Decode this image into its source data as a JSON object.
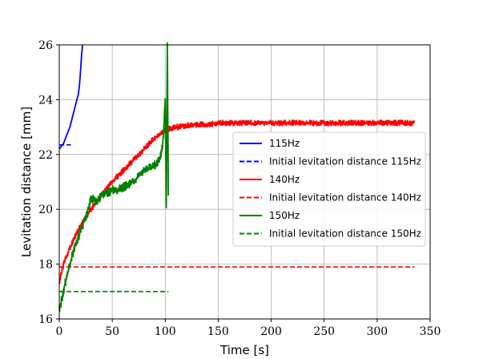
{
  "chart_data": {
    "type": "line",
    "xlabel": "Time [s]",
    "ylabel": "Levitation distance [mm]",
    "xlim": [
      0,
      350
    ],
    "ylim": [
      16,
      26
    ],
    "xticks": [
      0,
      50,
      100,
      150,
      200,
      250,
      300,
      350
    ],
    "yticks": [
      16,
      18,
      20,
      22,
      24,
      26
    ],
    "grid": true,
    "legend_position": "center-right",
    "series": [
      {
        "name": "115Hz",
        "style": "solid",
        "color": "#0000ff",
        "x": [
          0,
          2,
          4,
          6,
          8,
          10,
          12,
          14,
          16,
          18,
          19,
          20,
          21,
          22
        ],
        "y": [
          22.2,
          22.3,
          22.4,
          22.6,
          22.8,
          23.0,
          23.3,
          23.6,
          23.9,
          24.2,
          24.5,
          25.0,
          25.6,
          26.0
        ]
      },
      {
        "name": "Initial levitation distance 115Hz",
        "style": "dashed",
        "color": "#0000ff",
        "x": [
          0,
          11
        ],
        "y": [
          22.35,
          22.35
        ]
      },
      {
        "name": "140Hz",
        "style": "solid",
        "color": "#ff0000",
        "noise": 0.12,
        "x": [
          0,
          2,
          5,
          10,
          15,
          20,
          30,
          40,
          50,
          60,
          70,
          80,
          90,
          100,
          110,
          120,
          130,
          140,
          150,
          200,
          250,
          300,
          335
        ],
        "y": [
          17.3,
          17.7,
          18.1,
          18.6,
          19.0,
          19.4,
          20.0,
          20.5,
          21.0,
          21.4,
          21.8,
          22.2,
          22.6,
          22.9,
          23.0,
          23.05,
          23.1,
          23.1,
          23.15,
          23.15,
          23.15,
          23.15,
          23.15
        ]
      },
      {
        "name": "Initial levitation distance 140Hz",
        "style": "dashed",
        "color": "#ff0000",
        "x": [
          0,
          335
        ],
        "y": [
          17.9,
          17.9
        ]
      },
      {
        "name": "150Hz",
        "style": "solid",
        "color": "#008000",
        "noise": 0.18,
        "x": [
          0,
          5,
          10,
          15,
          20,
          25,
          30,
          35,
          40,
          45,
          50,
          55,
          60,
          65,
          70,
          75,
          80,
          85,
          90,
          95,
          98,
          100,
          101,
          102,
          103
        ],
        "y": [
          16.3,
          17.2,
          18.0,
          18.7,
          19.2,
          19.7,
          20.4,
          20.3,
          20.5,
          20.6,
          20.7,
          20.7,
          20.8,
          20.9,
          21.0,
          21.2,
          21.4,
          21.5,
          21.6,
          21.8,
          22.5,
          24.0,
          20.0,
          26.0,
          20.5
        ]
      },
      {
        "name": "Initial levitation distance 150Hz",
        "style": "dashed",
        "color": "#008000",
        "x": [
          0,
          103
        ],
        "y": [
          17.0,
          17.0
        ]
      }
    ]
  }
}
